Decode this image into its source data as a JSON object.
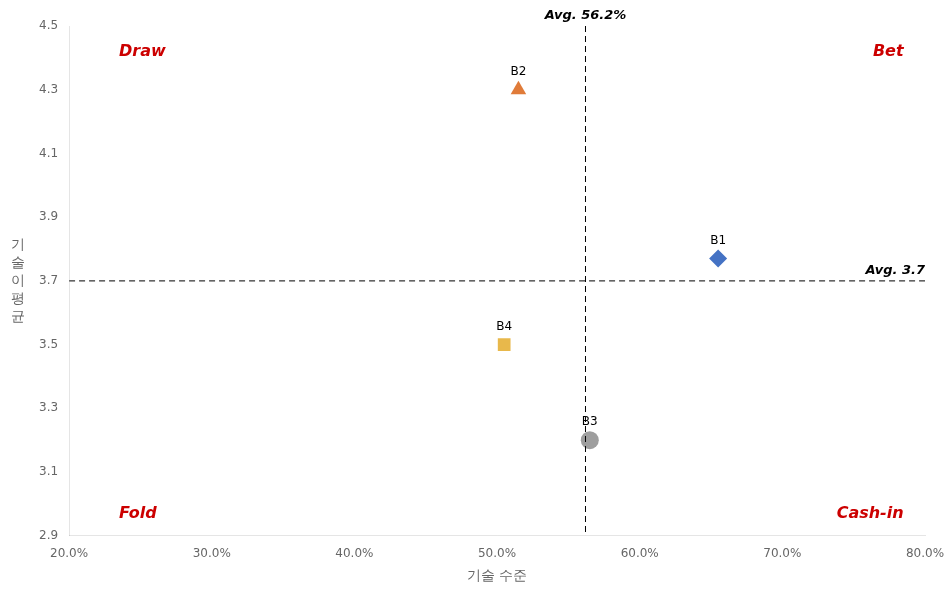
{
  "chart_data": {
    "type": "scatter",
    "points": [
      {
        "label": "B1",
        "x": 0.655,
        "y": 3.77,
        "marker": "diamond",
        "color": "#4472C4"
      },
      {
        "label": "B2",
        "x": 0.515,
        "y": 4.3,
        "marker": "triangle",
        "color": "#E07B39"
      },
      {
        "label": "B3",
        "x": 0.565,
        "y": 3.2,
        "marker": "circle",
        "color": "#9E9E9E"
      },
      {
        "label": "B4",
        "x": 0.505,
        "y": 3.5,
        "marker": "square",
        "color": "#E8B84B"
      }
    ],
    "reference_lines": [
      {
        "x": 0.562,
        "label": "Avg. 56.2%",
        "color": "#000000",
        "line_style": "dashed"
      },
      {
        "y": 3.7,
        "label": "Avg. 3.7",
        "color": "#000000",
        "line_style": "dashed"
      }
    ],
    "annotations": [
      {
        "text": "Draw",
        "x": 0.235,
        "y": 4.42,
        "color": "#CC0000"
      },
      {
        "text": "Bet",
        "x": 0.785,
        "y": 4.42,
        "color": "#CC0000"
      },
      {
        "text": "Fold",
        "x": 0.235,
        "y": 2.97,
        "color": "#CC0000"
      },
      {
        "text": "Cash-in",
        "x": 0.785,
        "y": 2.97,
        "color": "#CC0000"
      }
    ],
    "xlabel": "기술 수준",
    "ylabel": "기술이평균",
    "xlim": [
      0.2,
      0.8
    ],
    "ylim": [
      2.9,
      4.5
    ],
    "xticks": [
      {
        "value": 0.2,
        "label": "20.0%"
      },
      {
        "value": 0.3,
        "label": "30.0%"
      },
      {
        "value": 0.4,
        "label": "40.0%"
      },
      {
        "value": 0.5,
        "label": "50.0%"
      },
      {
        "value": 0.6,
        "label": "60.0%"
      },
      {
        "value": 0.7,
        "label": "70.0%"
      },
      {
        "value": 0.8,
        "label": "80.0%"
      }
    ],
    "yticks": [
      2.9,
      3.1,
      3.3,
      3.5,
      3.7,
      3.9,
      4.1,
      4.3,
      4.5
    ],
    "grid": false
  }
}
